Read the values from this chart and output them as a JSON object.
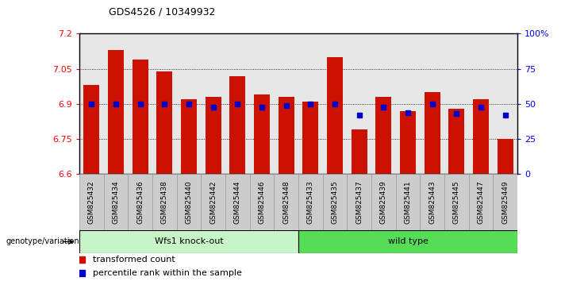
{
  "title": "GDS4526 / 10349932",
  "samples": [
    "GSM825432",
    "GSM825434",
    "GSM825436",
    "GSM825438",
    "GSM825440",
    "GSM825442",
    "GSM825444",
    "GSM825446",
    "GSM825448",
    "GSM825433",
    "GSM825435",
    "GSM825437",
    "GSM825439",
    "GSM825441",
    "GSM825443",
    "GSM825445",
    "GSM825447",
    "GSM825449"
  ],
  "transformed_count": [
    6.98,
    7.13,
    7.09,
    7.04,
    6.92,
    6.93,
    7.02,
    6.94,
    6.93,
    6.91,
    7.1,
    6.79,
    6.93,
    6.87,
    6.95,
    6.88,
    6.92,
    6.75
  ],
  "percentile_rank": [
    50,
    50,
    50,
    50,
    50,
    48,
    50,
    48,
    49,
    50,
    50,
    42,
    48,
    44,
    50,
    43,
    48,
    42
  ],
  "group_labels": [
    "Wfs1 knock-out",
    "wild type"
  ],
  "ko_color": "#c8f5c8",
  "wt_color": "#55dd55",
  "bar_color": "#cc1100",
  "blue_color": "#0000cc",
  "ylim_left": [
    6.6,
    7.2
  ],
  "ylim_right": [
    0,
    100
  ],
  "yticks_left": [
    6.6,
    6.75,
    6.9,
    7.05,
    7.2
  ],
  "yticks_right": [
    0,
    25,
    50,
    75,
    100
  ],
  "ytick_labels_right": [
    "0",
    "25",
    "50",
    "75",
    "100%"
  ],
  "n_ko": 9,
  "n_wt": 9,
  "bg_color": "#ffffff",
  "legend_items": [
    "transformed count",
    "percentile rank within the sample"
  ],
  "col_bg_even": "#d8d8d8",
  "col_bg_odd": "#e8e8e8"
}
